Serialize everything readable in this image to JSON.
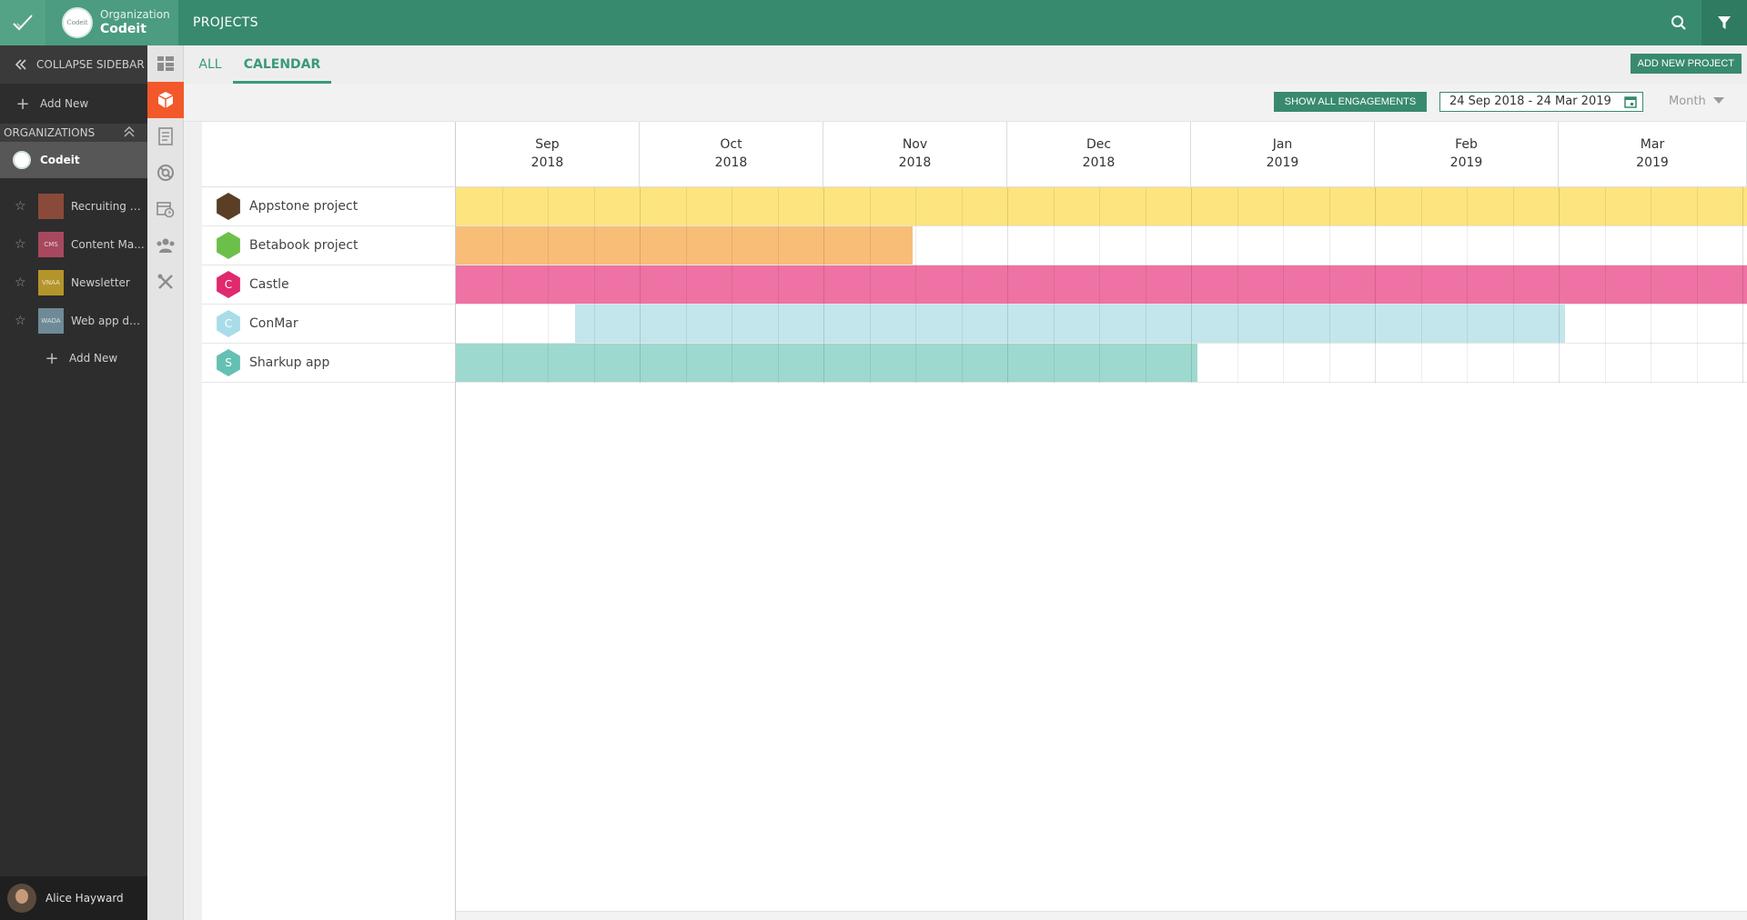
{
  "topbar": {
    "org_label": "Organization",
    "org_name": "Codeit",
    "org_logo_text": "Codeit",
    "title": "PROJECTS",
    "icons": [
      "check-icon",
      "search-icon",
      "filter-icon"
    ]
  },
  "sidebar": {
    "collapse_label": "COLLAPSE SIDEBAR",
    "add_new_label": "Add New",
    "orgs_header": "ORGANIZATIONS",
    "org_item": "Codeit",
    "projects": [
      {
        "name": "Recruiting p...",
        "thumb_color": "#8a4a3a",
        "thumb_text": ""
      },
      {
        "name": "Content Ma...",
        "thumb_color": "#a8485f",
        "thumb_text": "CMS"
      },
      {
        "name": "Newsletter",
        "thumb_color": "#b4952c",
        "thumb_text": "VNAA"
      },
      {
        "name": "Web app de...",
        "thumb_color": "#6e8a96",
        "thumb_text": "WADA"
      }
    ],
    "add_new_label_2": "Add New",
    "user_name": "Alice Hayward"
  },
  "iconrail": {
    "icons": [
      "dashboard-icon",
      "projects-cube-icon",
      "documents-icon",
      "support-icon",
      "calendar-clock-icon",
      "team-icon",
      "tools-icon"
    ],
    "active": "projects-cube-icon"
  },
  "tabs": {
    "all": "ALL",
    "calendar": "CALENDAR",
    "active": "CALENDAR",
    "add_project": "ADD NEW PROJECT"
  },
  "toolbar": {
    "show_all": "SHOW ALL ENGAGEMENTS",
    "date_range": "24 Sep 2018 - 24 Mar 2019",
    "view_mode": "Month"
  },
  "calendar": {
    "months": [
      {
        "month": "Sep",
        "year": "2018"
      },
      {
        "month": "Oct",
        "year": "2018"
      },
      {
        "month": "Nov",
        "year": "2018"
      },
      {
        "month": "Dec",
        "year": "2018"
      },
      {
        "month": "Jan",
        "year": "2019"
      },
      {
        "month": "Feb",
        "year": "2019"
      },
      {
        "month": "Mar",
        "year": "2019"
      }
    ],
    "projects": [
      {
        "name": "Appstone project",
        "icon_text": "",
        "icon_color": "#5a3e25",
        "bar_color": "#fde47e",
        "start_fraction": 0.0,
        "end_fraction": 1.0
      },
      {
        "name": "Betabook project",
        "icon_text": "",
        "icon_color": "#6cc04a",
        "bar_color": "#f8bd77",
        "start_fraction": 0.0,
        "end_fraction": 0.354
      },
      {
        "name": "Castle",
        "icon_text": "C",
        "icon_color": "#e0296e",
        "bar_color": "#ee72a3",
        "start_fraction": 0.0,
        "end_fraction": 1.0
      },
      {
        "name": "ConMar",
        "icon_text": "C",
        "icon_color": "#a8dde8",
        "bar_color": "#c3e5ec",
        "start_fraction": 0.092,
        "end_fraction": 0.859
      },
      {
        "name": "Sharkup app",
        "icon_text": "S",
        "icon_color": "#64c0b3",
        "bar_color": "#9dd9cf",
        "start_fraction": 0.0,
        "end_fraction": 0.574
      }
    ]
  }
}
